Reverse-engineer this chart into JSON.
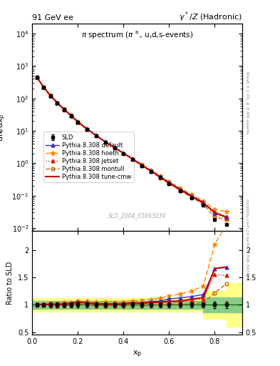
{
  "title_left": "91 GeV ee",
  "title_right": "γ*/Z (Hadronic)",
  "plot_title": "π spectrum (π±, u,d,s-events)",
  "ylabel_main": "dN/dx_p",
  "ylabel_ratio": "Ratio to SLD",
  "xlabel": "x_p",
  "watermark": "SLD_2004_S5693039",
  "right_label": "Rivet 3.1.10, ≥ 3.4M events",
  "right_label2": "mcplots.cern.ch [arXiv:1306.3436]",
  "xp": [
    0.02,
    0.05,
    0.08,
    0.11,
    0.14,
    0.17,
    0.2,
    0.24,
    0.28,
    0.32,
    0.36,
    0.4,
    0.44,
    0.48,
    0.52,
    0.56,
    0.6,
    0.65,
    0.7,
    0.75,
    0.8,
    0.85
  ],
  "sld_y": [
    450,
    220,
    120,
    72,
    45,
    29,
    18,
    11,
    7.0,
    4.5,
    3.0,
    2.0,
    1.3,
    0.85,
    0.55,
    0.36,
    0.23,
    0.14,
    0.085,
    0.052,
    0.018,
    0.013
  ],
  "sld_yerr": [
    15,
    8,
    5,
    3,
    2,
    1.2,
    0.8,
    0.5,
    0.3,
    0.2,
    0.12,
    0.08,
    0.055,
    0.035,
    0.023,
    0.015,
    0.01,
    0.006,
    0.004,
    0.0025,
    0.001,
    0.0008
  ],
  "default_y": [
    455,
    222,
    122,
    73,
    46,
    30,
    19,
    11.5,
    7.2,
    4.6,
    3.05,
    2.05,
    1.35,
    0.88,
    0.585,
    0.385,
    0.255,
    0.158,
    0.098,
    0.062,
    0.03,
    0.022
  ],
  "hoeth_y": [
    458,
    225,
    124,
    74,
    47,
    30.5,
    19.2,
    11.8,
    7.4,
    4.75,
    3.15,
    2.12,
    1.4,
    0.92,
    0.605,
    0.405,
    0.268,
    0.168,
    0.107,
    0.07,
    0.038,
    0.032
  ],
  "jetset_y": [
    453,
    222,
    121,
    72.5,
    45.5,
    29.5,
    18.8,
    11.3,
    7.1,
    4.55,
    3.02,
    2.03,
    1.34,
    0.87,
    0.57,
    0.375,
    0.242,
    0.148,
    0.092,
    0.058,
    0.028,
    0.02
  ],
  "montull_y": [
    448,
    218,
    119,
    71,
    44.5,
    28.8,
    18.3,
    11.0,
    6.9,
    4.42,
    2.94,
    1.97,
    1.3,
    0.84,
    0.548,
    0.358,
    0.232,
    0.141,
    0.087,
    0.054,
    0.022,
    0.018
  ],
  "tunecmw_y": [
    453,
    222,
    121,
    72.5,
    45.6,
    29.6,
    18.9,
    11.4,
    7.15,
    4.58,
    3.04,
    2.04,
    1.35,
    0.875,
    0.575,
    0.378,
    0.245,
    0.15,
    0.094,
    0.059,
    0.03,
    0.022
  ],
  "colors": {
    "sld": "#000000",
    "default": "#3333cc",
    "hoeth": "#ff8800",
    "jetset": "#cc2200",
    "montull": "#cc6600",
    "tunecmw": "#cc0000"
  },
  "yellow_color": "#ffff88",
  "green_color": "#88cc88",
  "band_xedges": [
    0.0,
    0.75,
    0.85,
    0.92
  ],
  "green_lo": [
    0.93,
    0.86,
    0.86
  ],
  "green_hi": [
    1.07,
    1.14,
    1.14
  ],
  "yellow_lo": [
    0.88,
    0.74,
    0.6
  ],
  "yellow_hi": [
    1.12,
    1.26,
    1.4
  ],
  "xlim": [
    0.0,
    0.92
  ],
  "ylim_main": [
    0.008,
    20000
  ],
  "ylim_ratio": [
    0.45,
    2.35
  ],
  "ratio_yticks": [
    0.5,
    1.0,
    1.5,
    2.0
  ],
  "ratio_yticklabels": [
    "0.5",
    "1",
    "1.5",
    "2"
  ]
}
